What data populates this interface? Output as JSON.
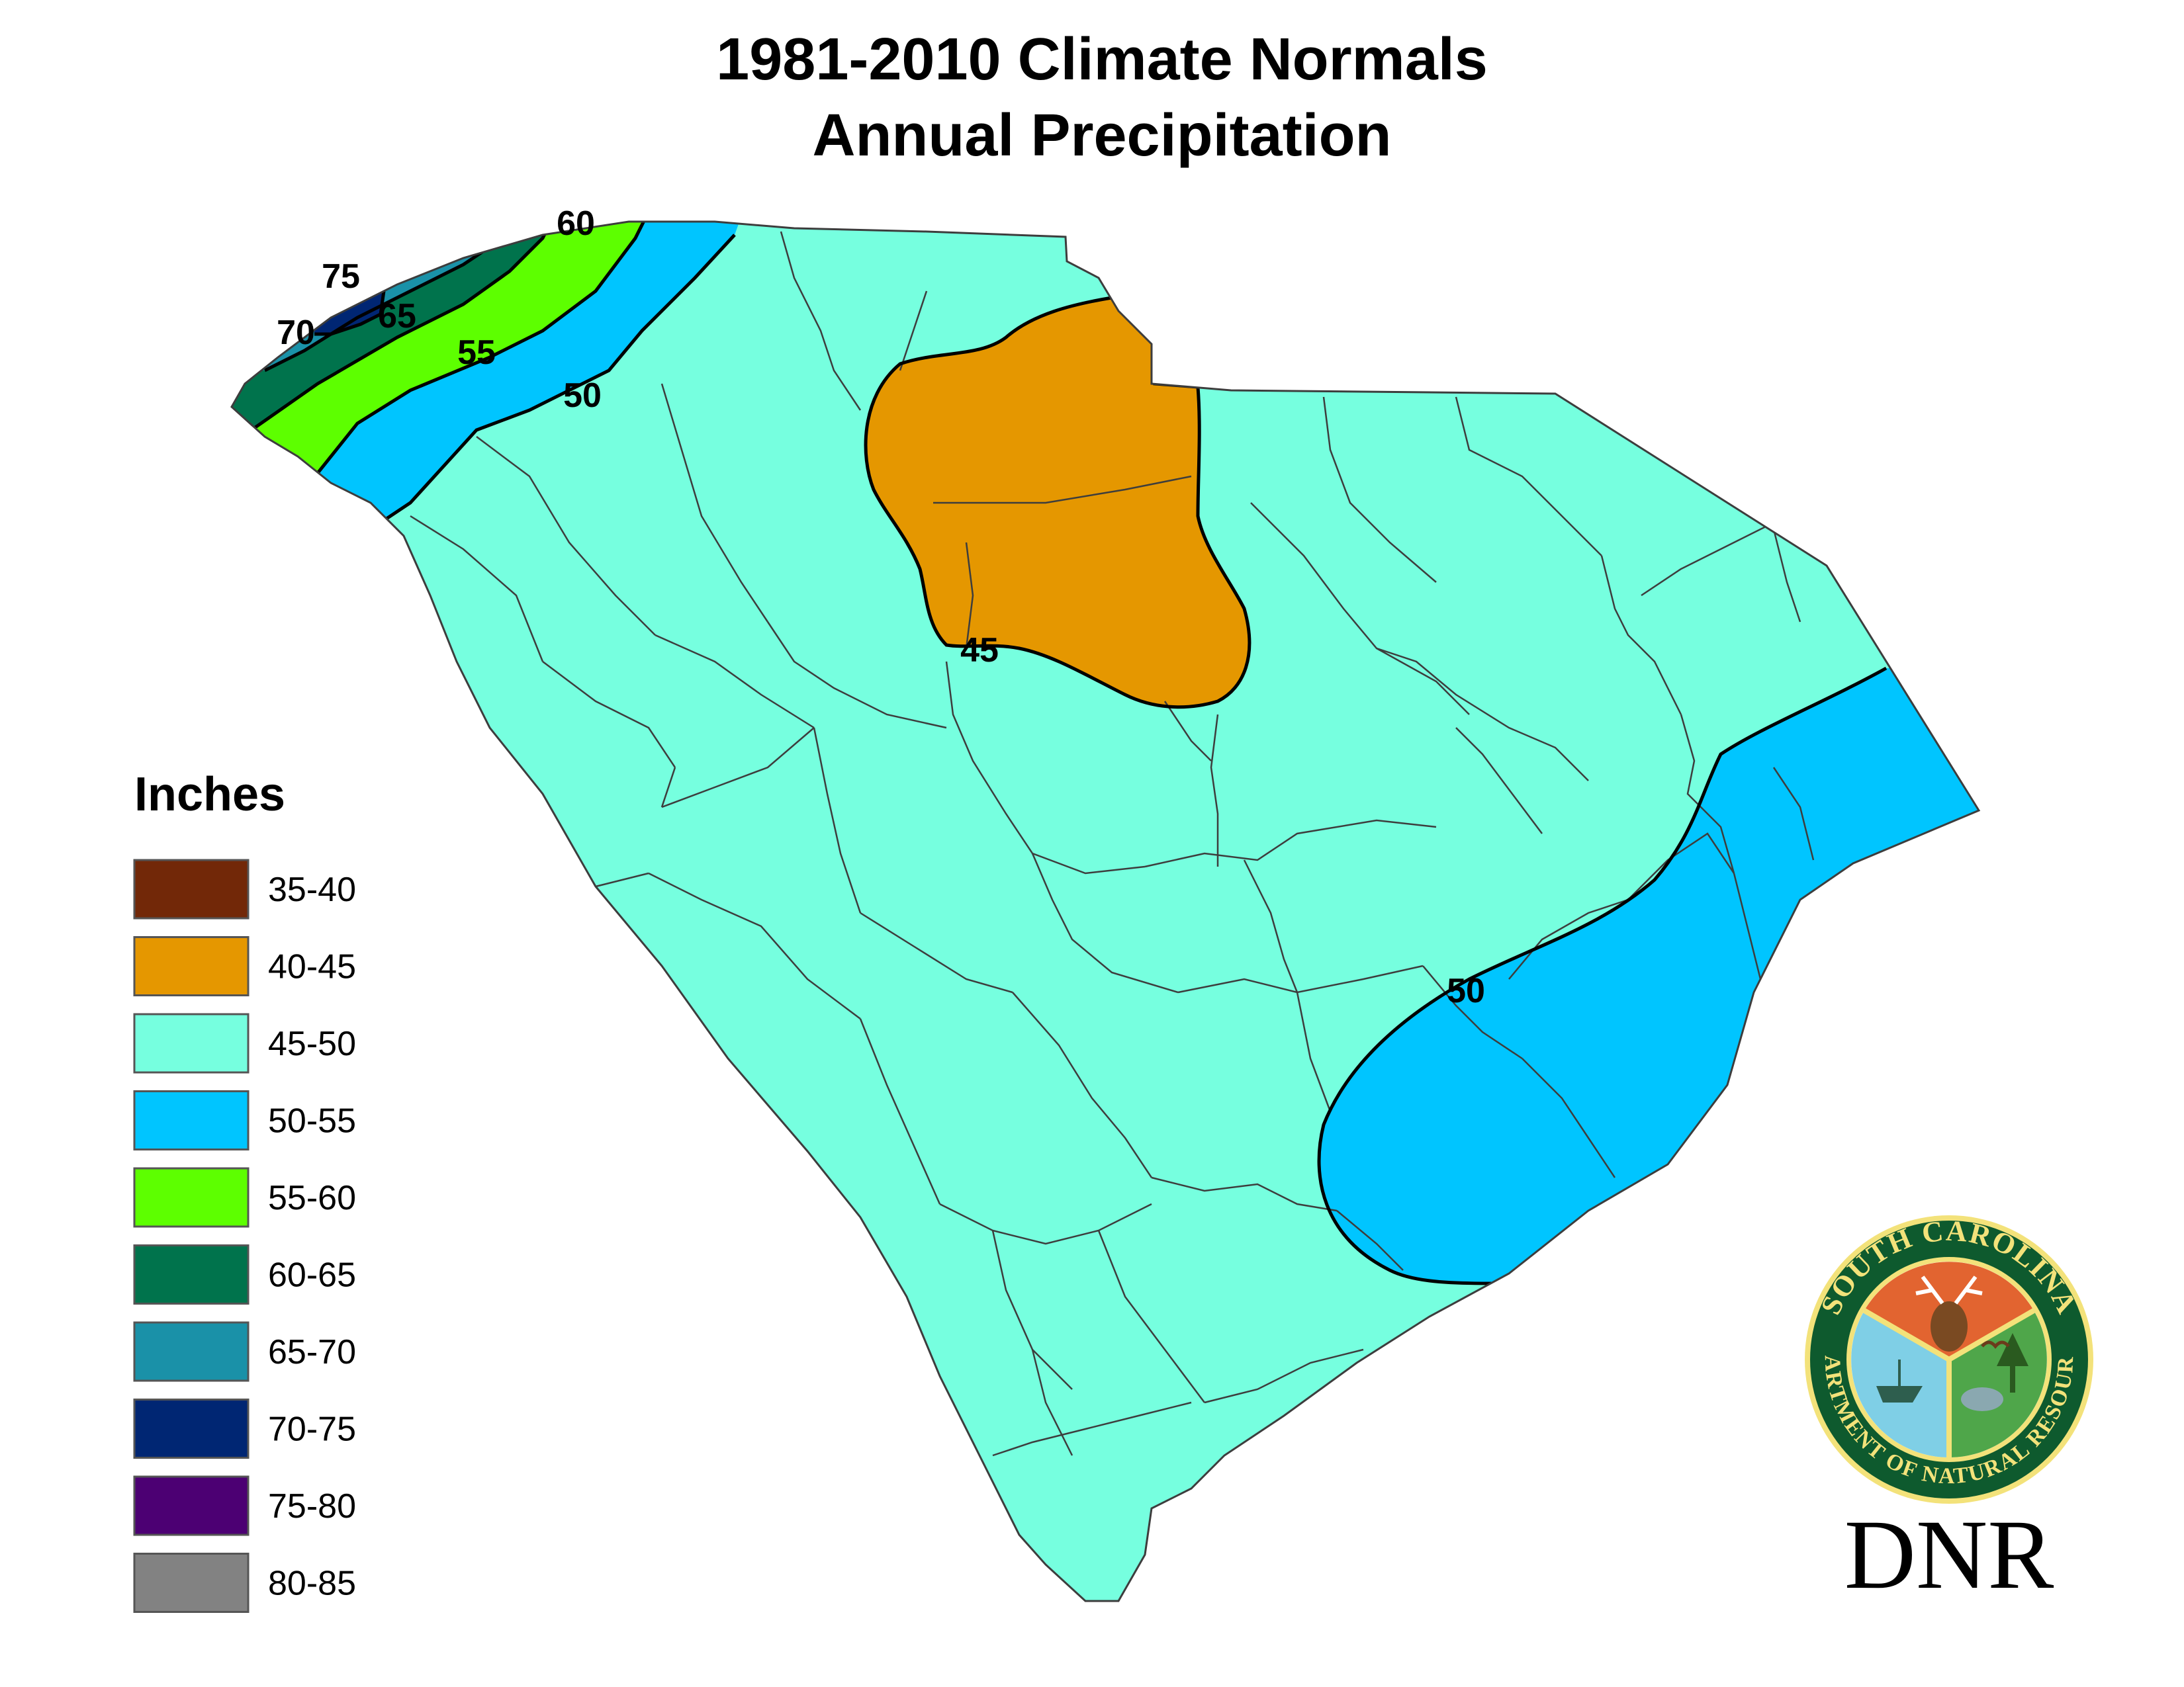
{
  "title": {
    "line1": "1981-2010 Climate Normals",
    "line2": "Annual Precipitation"
  },
  "legend": {
    "title": "Inches",
    "items": [
      {
        "label": "35-40",
        "color": "#722808"
      },
      {
        "label": "40-45",
        "color": "#e59700"
      },
      {
        "label": "45-50",
        "color": "#76ffdf"
      },
      {
        "label": "50-55",
        "color": "#00c5ff"
      },
      {
        "label": "55-60",
        "color": "#5dff00"
      },
      {
        "label": "60-65",
        "color": "#00734c"
      },
      {
        "label": "65-70",
        "color": "#1a91a8"
      },
      {
        "label": "70-75",
        "color": "#002673"
      },
      {
        "label": "75-80",
        "color": "#4c0073"
      },
      {
        "label": "80-85",
        "color": "#828282"
      }
    ]
  },
  "contour_labels": {
    "c60": "60",
    "c75": "75",
    "c65": "65",
    "c70": "70",
    "c55": "55",
    "c50_nw": "50",
    "c45": "45",
    "c50_se": "50"
  },
  "logo": {
    "seal_top": "SOUTH CAROLINA",
    "seal_bottom": "DEPARTMENT OF NATURAL RESOURCES",
    "wordmark": "DNR"
  },
  "colors": {
    "county_line": "#3d3d3d",
    "contour_line": "#000000",
    "seal_ring": "#0e5a2e",
    "seal_gold": "#f3e27a"
  }
}
